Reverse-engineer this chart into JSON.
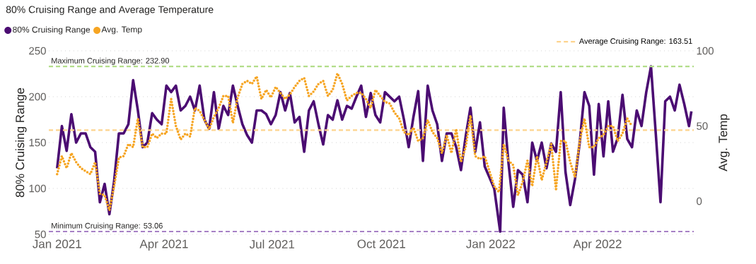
{
  "chart_data": {
    "type": "line",
    "title": "80% Cruising Range and Average Temperature",
    "ylabel": "80% Cruising Range",
    "y2label": "Avg. Temp",
    "x": [
      "2021-01-01",
      "2021-01-05",
      "2021-01-09",
      "2021-01-13",
      "2021-01-17",
      "2021-01-21",
      "2021-01-25",
      "2021-01-29",
      "2021-02-02",
      "2021-02-06",
      "2021-02-10",
      "2021-02-14",
      "2021-02-18",
      "2021-02-22",
      "2021-02-26",
      "2021-03-02",
      "2021-03-06",
      "2021-03-10",
      "2021-03-14",
      "2021-03-18",
      "2021-03-22",
      "2021-03-26",
      "2021-03-30",
      "2021-04-03",
      "2021-04-07",
      "2021-04-11",
      "2021-04-15",
      "2021-04-19",
      "2021-04-23",
      "2021-04-27",
      "2021-05-01",
      "2021-05-05",
      "2021-05-09",
      "2021-05-13",
      "2021-05-17",
      "2021-05-21",
      "2021-05-25",
      "2021-05-29",
      "2021-06-02",
      "2021-06-06",
      "2021-06-10",
      "2021-06-14",
      "2021-06-18",
      "2021-06-22",
      "2021-06-26",
      "2021-06-30",
      "2021-07-04",
      "2021-07-08",
      "2021-07-12",
      "2021-07-16",
      "2021-07-20",
      "2021-07-24",
      "2021-07-28",
      "2021-08-01",
      "2021-08-05",
      "2021-08-09",
      "2021-08-13",
      "2021-08-17",
      "2021-08-21",
      "2021-08-25",
      "2021-08-29",
      "2021-09-02",
      "2021-09-06",
      "2021-09-10",
      "2021-09-14",
      "2021-09-18",
      "2021-09-22",
      "2021-09-26",
      "2021-09-30",
      "2021-10-04",
      "2021-10-08",
      "2021-10-12",
      "2021-10-16",
      "2021-10-20",
      "2021-10-24",
      "2021-10-28",
      "2021-11-01",
      "2021-11-05",
      "2021-11-09",
      "2021-11-13",
      "2021-11-17",
      "2021-11-21",
      "2021-11-25",
      "2021-11-29",
      "2021-12-03",
      "2021-12-07",
      "2021-12-11",
      "2021-12-15",
      "2021-12-19",
      "2021-12-23",
      "2021-12-27",
      "2021-12-31",
      "2022-01-04",
      "2022-01-09",
      "2022-01-12",
      "2022-01-16",
      "2022-01-20",
      "2022-01-24",
      "2022-01-28",
      "2022-02-01",
      "2022-02-05",
      "2022-02-09",
      "2022-02-13",
      "2022-02-17",
      "2022-02-21",
      "2022-02-25",
      "2022-03-01",
      "2022-03-05",
      "2022-03-09",
      "2022-03-13",
      "2022-03-17",
      "2022-03-21",
      "2022-03-25",
      "2022-03-29",
      "2022-04-02",
      "2022-04-06",
      "2022-04-10",
      "2022-04-14",
      "2022-04-18",
      "2022-04-22",
      "2022-04-26",
      "2022-04-30",
      "2022-05-04",
      "2022-05-08",
      "2022-05-12",
      "2022-05-16",
      "2022-05-20",
      "2022-05-24",
      "2022-05-28",
      "2022-06-01",
      "2022-06-05",
      "2022-06-09",
      "2022-06-13",
      "2022-06-17",
      "2022-06-19"
    ],
    "series": [
      {
        "name": "80% Cruising Range",
        "color": "#4b0c72",
        "values": [
          122,
          168,
          141,
          181,
          150,
          160,
          160,
          145,
          140,
          85,
          105,
          72,
          108,
          160,
          160,
          170,
          218,
          185,
          145,
          150,
          182,
          175,
          170,
          212,
          205,
          212,
          185,
          190,
          200,
          185,
          212,
          175,
          165,
          205,
          165,
          190,
          180,
          212,
          190,
          170,
          158,
          150,
          185,
          185,
          181,
          170,
          180,
          205,
          185,
          204,
          172,
          178,
          140,
          185,
          195,
          170,
          148,
          180,
          175,
          196,
          175,
          190,
          187,
          200,
          212,
          178,
          204,
          180,
          172,
          205,
          200,
          195,
          200,
          175,
          145,
          178,
          206,
          130,
          212,
          185,
          170,
          130,
          160,
          160,
          145,
          120,
          157,
          188,
          140,
          172,
          124,
          112,
          100,
          53,
          188,
          128,
          80,
          120,
          115,
          85,
          150,
          130,
          150,
          122,
          149,
          140,
          205,
          118,
          82,
          110,
          150,
          205,
          190,
          115,
          192,
          135,
          195,
          140,
          155,
          202,
          154,
          145,
          185,
          168,
          205,
          233,
          160,
          85,
          195,
          200,
          185,
          213,
          192,
          168,
          184
        ]
      },
      {
        "name": "Avg. Temp",
        "color": "#f6a523",
        "axis": "y2",
        "line_style": "dotted",
        "x": [
          "2021-01-01",
          "2021-01-05",
          "2021-01-09",
          "2021-01-13",
          "2021-01-17",
          "2021-01-21",
          "2021-01-25",
          "2021-01-29",
          "2021-02-02",
          "2021-02-06",
          "2021-02-10",
          "2021-02-14",
          "2021-02-18",
          "2021-02-22",
          "2021-02-26",
          "2021-03-02",
          "2021-03-06",
          "2021-03-10",
          "2021-03-14",
          "2021-03-18",
          "2021-03-22",
          "2021-03-26",
          "2021-03-30",
          "2021-04-03",
          "2021-04-07",
          "2021-04-11",
          "2021-04-15",
          "2021-04-19",
          "2021-04-23",
          "2021-04-27",
          "2021-05-01",
          "2021-05-05",
          "2021-05-09",
          "2021-05-13",
          "2021-05-17",
          "2021-05-21",
          "2021-05-25",
          "2021-05-29",
          "2021-06-02",
          "2021-06-06",
          "2021-06-10",
          "2021-06-14",
          "2021-06-18",
          "2021-06-22",
          "2021-06-26",
          "2021-06-30",
          "2021-07-04",
          "2021-07-08",
          "2021-07-12",
          "2021-07-16",
          "2021-07-20",
          "2021-07-24",
          "2021-07-28",
          "2021-08-01",
          "2021-08-05",
          "2021-08-09",
          "2021-08-13",
          "2021-08-17",
          "2021-08-21",
          "2021-08-25",
          "2021-08-29",
          "2021-09-02",
          "2021-09-06",
          "2021-09-10",
          "2021-09-14",
          "2021-09-18",
          "2021-09-22",
          "2021-09-26",
          "2021-09-30",
          "2021-10-04",
          "2021-10-08",
          "2021-10-12",
          "2021-10-16",
          "2021-10-20",
          "2021-10-24",
          "2021-10-28",
          "2021-11-01",
          "2021-11-05",
          "2021-11-09",
          "2021-11-13",
          "2021-11-17",
          "2021-11-21",
          "2021-11-25",
          "2021-11-29",
          "2021-12-03",
          "2021-12-07",
          "2021-12-11",
          "2021-12-15",
          "2021-12-19",
          "2021-12-23",
          "2021-12-27",
          "2021-12-31",
          "2022-01-04",
          "2022-01-08",
          "2022-01-12",
          "2022-01-16",
          "2022-01-20",
          "2022-01-24",
          "2022-01-28",
          "2022-02-01",
          "2022-02-05",
          "2022-02-09",
          "2022-02-13",
          "2022-02-17",
          "2022-02-21",
          "2022-02-25",
          "2022-03-01",
          "2022-03-05",
          "2022-03-09",
          "2022-03-13",
          "2022-03-17",
          "2022-03-21",
          "2022-03-25",
          "2022-03-29",
          "2022-04-02",
          "2022-04-06",
          "2022-04-10",
          "2022-04-14",
          "2022-04-18",
          "2022-04-22",
          "2022-04-26",
          "2022-04-30"
        ],
        "values": [
          18,
          30,
          22,
          32,
          26,
          22,
          20,
          18,
          26,
          5,
          4,
          -6,
          10,
          29,
          30,
          38,
          36,
          55,
          36,
          36,
          45,
          42,
          45,
          45,
          68,
          50,
          41,
          45,
          43,
          62,
          60,
          54,
          48,
          56,
          62,
          70,
          70,
          52,
          69,
          78,
          80,
          78,
          83,
          68,
          74,
          69,
          76,
          72,
          68,
          71,
          76,
          80,
          82,
          70,
          73,
          78,
          80,
          70,
          74,
          85,
          78,
          67,
          70,
          72,
          72,
          68,
          62,
          74,
          70,
          66,
          65,
          59,
          55,
          46,
          44,
          49,
          40,
          42,
          54,
          46,
          42,
          32,
          44,
          32,
          48,
          26,
          36,
          57,
          30,
          28,
          30,
          20,
          10,
          6,
          38,
          27,
          24,
          4,
          13,
          27,
          10,
          30,
          14,
          26,
          38,
          8,
          40,
          40,
          26,
          16,
          40,
          55,
          36,
          36,
          42,
          44,
          50,
          50,
          40,
          45,
          55,
          50
        ]
      }
    ],
    "xlim": [
      "2020-12-25",
      "2022-06-21"
    ],
    "xticks": [
      {
        "value": "2021-01-01",
        "label": "Jan 2021"
      },
      {
        "value": "2021-04-01",
        "label": "Apr 2021"
      },
      {
        "value": "2021-07-01",
        "label": "Jul 2021"
      },
      {
        "value": "2021-10-01",
        "label": "Oct 2021"
      },
      {
        "value": "2022-01-01",
        "label": "Jan 2022"
      },
      {
        "value": "2022-04-01",
        "label": "Apr 2022"
      }
    ],
    "ylim": [
      50,
      250
    ],
    "yticks": [
      50,
      100,
      150,
      200,
      250
    ],
    "y2lim": [
      -22,
      100
    ],
    "y2ticks": [
      0,
      50,
      100
    ],
    "grid": "y",
    "legend": "top left",
    "line_style": "solid",
    "marker": "none",
    "ref_lines": [
      {
        "axis": "y",
        "value": 232.9,
        "label": "Maximum Cruising Range: 232.90",
        "color": "#b3dd8a",
        "line_style": "dashed"
      },
      {
        "axis": "y",
        "value": 53.06,
        "label": "Minimum Cruising Range: 53.06",
        "color": "#a781c6",
        "line_style": "dashed"
      },
      {
        "axis": "y",
        "value": 163.51,
        "label": "Average Cruising Range: 163.51",
        "color": "#fdd48e",
        "line_style": "dashed"
      }
    ]
  }
}
